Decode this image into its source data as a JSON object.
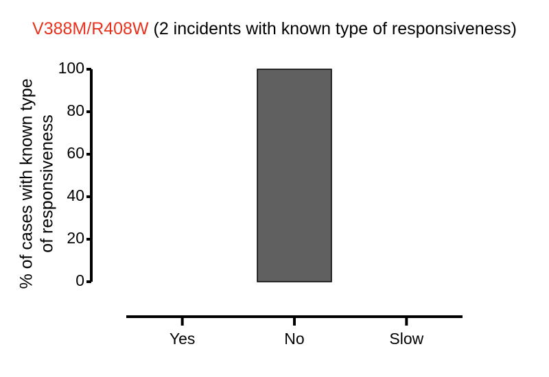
{
  "chart_data": {
    "type": "bar",
    "title": {
      "variant": "V388M/R408W",
      "rest": " (2 incidents with known type of responsiveness)"
    },
    "ylabel": [
      "% of cases with  known type",
      "of responsiveness"
    ],
    "xlabel": "",
    "categories": [
      "Yes",
      "No",
      "Slow"
    ],
    "values": [
      0,
      100,
      0
    ],
    "ylim": [
      0,
      100
    ],
    "yticks": [
      0,
      20,
      40,
      60,
      80,
      100
    ],
    "grid": false,
    "legend": "none"
  },
  "colors": {
    "bar": "#606060",
    "title_variant": "#e8321e",
    "axis": "#000000"
  }
}
